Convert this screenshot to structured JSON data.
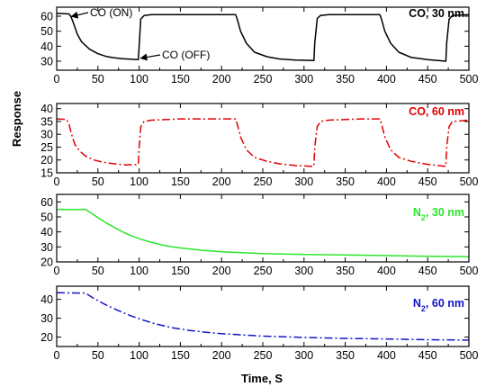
{
  "colors": {
    "black": "#000000",
    "red": "#e00000",
    "green": "#2be52b",
    "blue": "#1414c8"
  },
  "axis_titles": {
    "x": "Time, S",
    "y": "Response"
  },
  "chart_data": [
    {
      "type": "line",
      "label": "CO, 30 nm",
      "color": "#000000",
      "line_style": "solid",
      "xlim": [
        0,
        500
      ],
      "ylim": [
        24,
        66
      ],
      "xticks": [
        0,
        50,
        100,
        150,
        200,
        250,
        300,
        350,
        400,
        450,
        500
      ],
      "yticks": [
        30,
        40,
        50,
        60
      ],
      "annotations": [
        "CO (ON)",
        "CO (OFF)"
      ],
      "series": [
        {
          "x": [
            0,
            15,
            17,
            20,
            25,
            30,
            40,
            50,
            60,
            70,
            80,
            90,
            99,
            100,
            102,
            106,
            115,
            150,
            217,
            219,
            223,
            230,
            240,
            255,
            270,
            290,
            312,
            313,
            316,
            320,
            330,
            370,
            392,
            394,
            398,
            405,
            415,
            430,
            450,
            472,
            473,
            476,
            480,
            500
          ],
          "y": [
            62,
            61.5,
            60,
            56,
            48,
            43,
            38,
            35,
            33.2,
            32.2,
            31.7,
            31.3,
            31,
            40,
            58,
            60.5,
            61,
            61,
            61,
            58,
            50,
            42,
            36,
            33,
            31.5,
            30.8,
            30.5,
            42,
            58.5,
            60.5,
            61,
            61,
            61,
            58,
            50,
            42,
            36,
            32.5,
            31,
            30,
            42,
            58,
            60.5,
            61
          ]
        }
      ]
    },
    {
      "type": "line",
      "label": "CO, 60 nm",
      "color": "#e00000",
      "line_style": "dash-dot",
      "xlim": [
        0,
        500
      ],
      "ylim": [
        15,
        42
      ],
      "xticks": [
        0,
        50,
        100,
        150,
        200,
        250,
        300,
        350,
        400,
        450,
        500
      ],
      "yticks": [
        15,
        20,
        25,
        30,
        35,
        40
      ],
      "series": [
        {
          "x": [
            0,
            12,
            15,
            18,
            22,
            28,
            35,
            45,
            55,
            65,
            75,
            85,
            95,
            99,
            100,
            102,
            106,
            115,
            150,
            217,
            219,
            223,
            230,
            240,
            255,
            270,
            290,
            312,
            313,
            316,
            320,
            330,
            370,
            392,
            394,
            398,
            405,
            415,
            430,
            450,
            472,
            473,
            476,
            480,
            500
          ],
          "y": [
            36,
            35.8,
            34,
            30,
            26,
            23.5,
            21.5,
            20,
            19.2,
            18.7,
            18.3,
            18.1,
            18.2,
            18.3,
            25,
            33,
            35,
            35.5,
            36,
            36,
            34,
            29,
            24,
            21,
            19.5,
            18.5,
            17.8,
            17.5,
            25,
            33,
            35,
            35.5,
            36,
            36,
            34,
            29,
            24,
            21,
            19.5,
            18.3,
            17.5,
            25,
            33,
            35,
            35.5
          ]
        }
      ]
    },
    {
      "type": "line",
      "label": "N2, 30 nm",
      "color": "#2be52b",
      "line_style": "solid",
      "xlim": [
        0,
        500
      ],
      "ylim": [
        20,
        65
      ],
      "xticks": [
        0,
        50,
        100,
        150,
        200,
        250,
        300,
        350,
        400,
        450,
        500
      ],
      "yticks": [
        20,
        30,
        40,
        50,
        60
      ],
      "series": [
        {
          "x": [
            0,
            35,
            50,
            60,
            70,
            80,
            90,
            100,
            110,
            120,
            135,
            150,
            175,
            200,
            250,
            300,
            350,
            400,
            450,
            500
          ],
          "y": [
            55,
            55,
            49.5,
            46,
            43,
            40,
            37.5,
            35.5,
            33.8,
            32.3,
            30.5,
            29.3,
            27.8,
            26.7,
            25.5,
            25,
            24.6,
            24.2,
            23.8,
            23.5
          ]
        }
      ]
    },
    {
      "type": "line",
      "label": "N2, 60 nm",
      "color": "#1414c8",
      "line_style": "dash-dot",
      "xlim": [
        0,
        500
      ],
      "ylim": [
        15,
        47
      ],
      "xticks": [
        0,
        50,
        100,
        150,
        200,
        250,
        300,
        350,
        400,
        450,
        500
      ],
      "yticks": [
        20,
        30,
        40
      ],
      "series": [
        {
          "x": [
            0,
            35,
            45,
            60,
            75,
            90,
            105,
            120,
            140,
            160,
            180,
            200,
            250,
            300,
            350,
            400,
            450,
            500
          ],
          "y": [
            43.5,
            43.3,
            40.5,
            37,
            34,
            31.3,
            29,
            27,
            25,
            23.6,
            22.6,
            21.8,
            20.5,
            19.8,
            19.3,
            19,
            18.6,
            18.4
          ]
        }
      ]
    }
  ]
}
